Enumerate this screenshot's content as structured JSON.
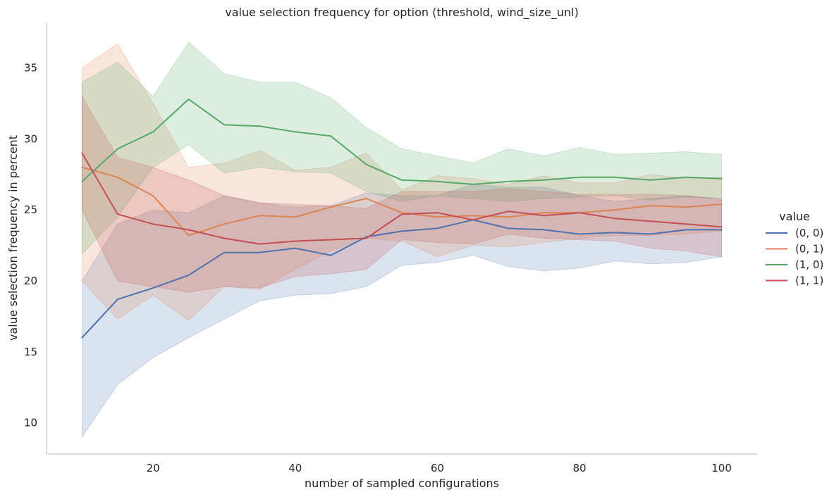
{
  "chart_data": {
    "type": "line",
    "title": "value selection frequency for option (threshold, wind_size_unl)",
    "xlabel": "number of sampled configurations",
    "ylabel": "value selection frequency in percent",
    "xlim": [
      5,
      105
    ],
    "ylim": [
      7.8,
      38.2
    ],
    "xticks": [
      20,
      40,
      60,
      80,
      100
    ],
    "yticks": [
      10,
      15,
      20,
      25,
      30,
      35
    ],
    "grid": false,
    "legend": {
      "title": "value",
      "placement": "right"
    },
    "x": [
      10,
      15,
      20,
      25,
      30,
      35,
      40,
      45,
      50,
      55,
      60,
      65,
      70,
      75,
      80,
      85,
      90,
      95,
      100
    ],
    "series": [
      {
        "name": "(0, 0)",
        "color": "#4c72b0",
        "values": [
          16.0,
          18.7,
          19.5,
          20.4,
          22.0,
          22.0,
          22.3,
          21.8,
          23.1,
          23.5,
          23.7,
          24.3,
          23.7,
          23.6,
          23.3,
          23.4,
          23.3,
          23.6,
          23.6
        ],
        "lower": [
          9.0,
          12.7,
          14.6,
          16.0,
          17.3,
          18.6,
          19.0,
          19.1,
          19.6,
          21.1,
          21.3,
          21.8,
          21.0,
          20.7,
          20.9,
          21.4,
          21.2,
          21.3,
          21.7
        ],
        "upper": [
          20.0,
          24.0,
          25.0,
          24.8,
          26.0,
          25.5,
          25.2,
          25.3,
          26.2,
          26.0,
          26.0,
          26.8,
          26.6,
          26.6,
          26.0,
          25.6,
          25.8,
          26.0,
          25.8
        ]
      },
      {
        "name": "(0, 1)",
        "color": "#dd8452",
        "values": [
          28.0,
          27.3,
          26.0,
          23.2,
          24.0,
          24.6,
          24.5,
          25.2,
          25.8,
          24.8,
          24.5,
          24.6,
          24.5,
          24.8,
          24.8,
          25.0,
          25.3,
          25.2,
          25.4
        ],
        "lower": [
          20.0,
          17.3,
          19.0,
          17.2,
          19.6,
          19.4,
          20.8,
          22.1,
          23.0,
          22.8,
          21.7,
          22.5,
          22.4,
          22.7,
          23.0,
          23.2,
          23.2,
          23.3,
          23.5
        ],
        "upper": [
          35.0,
          36.7,
          32.5,
          28.0,
          28.3,
          29.2,
          27.8,
          28.0,
          29.0,
          26.4,
          27.4,
          27.2,
          26.8,
          27.4,
          26.9,
          26.9,
          27.5,
          27.2,
          27.3
        ]
      },
      {
        "name": "(1, 0)",
        "color": "#55a868",
        "values": [
          27.0,
          29.3,
          30.5,
          32.8,
          31.0,
          30.9,
          30.5,
          30.2,
          28.2,
          27.1,
          27.0,
          26.8,
          27.0,
          27.1,
          27.3,
          27.3,
          27.1,
          27.3,
          27.2
        ],
        "lower": [
          21.9,
          24.5,
          28.0,
          29.6,
          27.6,
          28.0,
          27.7,
          27.6,
          26.3,
          25.6,
          26.0,
          25.8,
          25.6,
          25.8,
          25.9,
          26.0,
          25.7,
          25.9,
          25.8
        ],
        "upper": [
          34.0,
          35.4,
          33.0,
          36.8,
          34.6,
          34.0,
          34.0,
          32.9,
          30.8,
          29.3,
          28.8,
          28.3,
          29.3,
          28.8,
          29.4,
          28.9,
          29.0,
          29.1,
          28.9
        ]
      },
      {
        "name": "(1, 1)",
        "color": "#c44e52",
        "values": [
          29.0,
          24.7,
          24.0,
          23.6,
          23.0,
          22.6,
          22.8,
          22.9,
          23.0,
          24.7,
          24.8,
          24.3,
          24.9,
          24.6,
          24.8,
          24.4,
          24.2,
          24.0,
          23.8
        ],
        "lower": [
          25.0,
          20.0,
          19.6,
          19.2,
          19.6,
          19.5,
          20.3,
          20.5,
          20.8,
          22.9,
          22.7,
          22.6,
          23.3,
          23.0,
          22.9,
          22.8,
          22.3,
          22.1,
          21.7
        ],
        "upper": [
          33.0,
          28.7,
          28.0,
          27.1,
          26.0,
          25.5,
          25.4,
          25.3,
          25.1,
          26.3,
          26.3,
          26.3,
          26.5,
          26.3,
          26.1,
          26.1,
          26.1,
          26.0,
          25.7
        ]
      }
    ]
  }
}
